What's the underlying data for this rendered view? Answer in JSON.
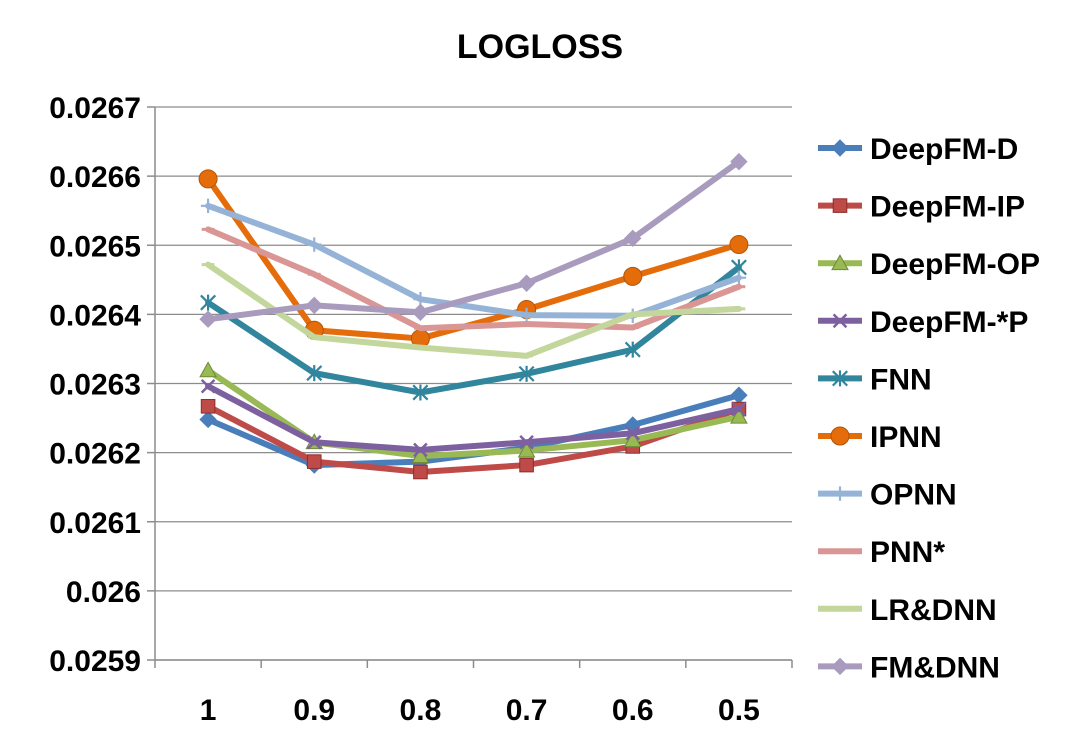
{
  "chart_data": {
    "type": "line",
    "title": "LOGLOSS",
    "xlabel": "",
    "ylabel": "",
    "categories": [
      "1",
      "0.9",
      "0.8",
      "0.7",
      "0.6",
      "0.5"
    ],
    "ylim": [
      0.0259,
      0.0267
    ],
    "yticks": [
      "0.0259",
      "0.026",
      "0.0261",
      "0.0262",
      "0.0263",
      "0.0264",
      "0.0265",
      "0.0266",
      "0.0267"
    ],
    "grid": "horizontal",
    "legend_position": "right",
    "series": [
      {
        "name": "DeepFM-D",
        "color": "#4a7ebb",
        "marker": "diamond",
        "values": [
          0.026248,
          0.026182,
          0.026187,
          0.026207,
          0.02624,
          0.026283
        ]
      },
      {
        "name": "DeepFM-IP",
        "color": "#be4b48",
        "marker": "square",
        "values": [
          0.026267,
          0.026187,
          0.026172,
          0.026182,
          0.026209,
          0.026263
        ]
      },
      {
        "name": "DeepFM-OP",
        "color": "#98b954",
        "marker": "triangle",
        "values": [
          0.026319,
          0.026215,
          0.026195,
          0.026203,
          0.026218,
          0.026252
        ]
      },
      {
        "name": "DeepFM-*P",
        "color": "#7d60a0",
        "marker": "x",
        "values": [
          0.026296,
          0.026215,
          0.026204,
          0.026215,
          0.026228,
          0.026263
        ]
      },
      {
        "name": "FNN",
        "color": "#31859c",
        "marker": "asterisk",
        "values": [
          0.026417,
          0.026315,
          0.026287,
          0.026314,
          0.026349,
          0.026468
        ]
      },
      {
        "name": "IPNN",
        "color": "#e46c0a",
        "marker": "circle",
        "values": [
          0.026596,
          0.026377,
          0.026365,
          0.026407,
          0.026455,
          0.026501
        ]
      },
      {
        "name": "OPNN",
        "color": "#95b3d7",
        "marker": "plus",
        "values": [
          0.026557,
          0.026501,
          0.026422,
          0.026399,
          0.026398,
          0.026453
        ]
      },
      {
        "name": "PNN*",
        "color": "#d99694",
        "marker": "dash",
        "values": [
          0.026523,
          0.026458,
          0.02638,
          0.026386,
          0.026381,
          0.02644
        ]
      },
      {
        "name": "LR&DNN",
        "color": "#c3d69b",
        "marker": "dash",
        "values": [
          0.026472,
          0.026367,
          0.026352,
          0.02634,
          0.0264,
          0.026408
        ]
      },
      {
        "name": "FM&DNN",
        "color": "#a99bbd",
        "marker": "diamond",
        "values": [
          0.026393,
          0.026413,
          0.026403,
          0.026445,
          0.02651,
          0.026621
        ]
      }
    ]
  }
}
